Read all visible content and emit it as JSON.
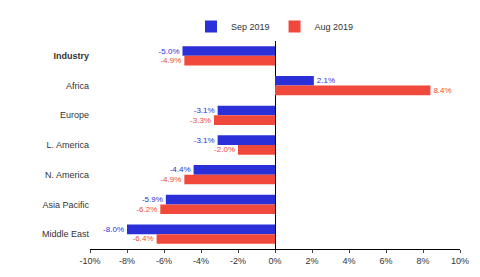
{
  "chart_data": {
    "type": "bar",
    "orientation": "horizontal",
    "categories": [
      "Industry",
      "Africa",
      "Europe",
      "L. America",
      "N. America",
      "Asia Pacific",
      "Middle East"
    ],
    "series": [
      {
        "name": "Sep 2019",
        "color": "#2a2fd8",
        "values": [
          -5.0,
          2.1,
          -3.1,
          -3.1,
          -4.4,
          -5.9,
          -8.0
        ],
        "value_labels": [
          "-5.0%",
          "2.1%",
          "-3.1%",
          "-3.1%",
          "-4.4%",
          "-5.9%",
          "-8.0%"
        ]
      },
      {
        "name": "Aug 2019",
        "color": "#f0483a",
        "values": [
          -4.9,
          8.4,
          -3.3,
          -2.0,
          -4.9,
          -6.2,
          -6.4
        ],
        "value_labels": [
          "-4.9%",
          "8.4%",
          "-3.3%",
          "-2.0%",
          "-4.9%",
          "-6.2%",
          "-6.4%"
        ]
      }
    ],
    "xlim": [
      -10,
      10
    ],
    "xticks": [
      {
        "value": -10,
        "label": "-10%"
      },
      {
        "value": -8,
        "label": "-8%"
      },
      {
        "value": -6,
        "label": "-6%"
      },
      {
        "value": -4,
        "label": "-4%"
      },
      {
        "value": -2,
        "label": "-2%"
      },
      {
        "value": 0,
        "label": "0%"
      },
      {
        "value": 2,
        "label": "2%"
      },
      {
        "value": 4,
        "label": "4%"
      },
      {
        "value": 6,
        "label": "6%"
      },
      {
        "value": 8,
        "label": "8%"
      },
      {
        "value": 10,
        "label": "10%"
      }
    ],
    "grid": false,
    "legend": "top",
    "data_labels": true
  }
}
